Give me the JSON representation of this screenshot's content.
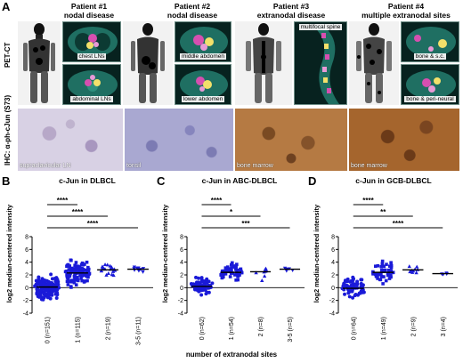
{
  "figure": {
    "panel_a": {
      "letter": "A",
      "row_label_pet": "PET-CT",
      "row_label_ihc": "IHC: α-ph-cJun (S73)",
      "patients": [
        {
          "title_line1": "Patient #1",
          "title_line2": "nodal disease",
          "ct_labels": [
            "chest LNs",
            "abdominal LNs"
          ],
          "ihc_label": "supraclavicular LN"
        },
        {
          "title_line1": "Patient #2",
          "title_line2": "nodal disease",
          "ct_labels": [
            "middle abdomen",
            "lower abdomen"
          ],
          "ihc_label": "tonsil"
        },
        {
          "title_line1": "Patient #3",
          "title_line2": "extranodal disease",
          "ct_labels": [
            "multifocal spine"
          ],
          "ihc_label": "bone marrow"
        },
        {
          "title_line1": "Patient #4",
          "title_line2": "multiple extranodal sites",
          "ct_labels": [
            "bone & s.c.",
            "bone & peri-neural"
          ],
          "ihc_label": "bone marrow"
        }
      ]
    },
    "x_caption": "number of extranodal sites",
    "y_label": "log2 median-centered intensity",
    "colors": {
      "marker": "#1a1ad8",
      "ihc_low": "#c9c4dc",
      "ihc_high": "#a5652d",
      "ct_bg": "#07221f"
    }
  },
  "chart_data": [
    {
      "type": "scatter",
      "panel": "B",
      "title": "c-Jun in DLBCL",
      "ylabel": "log2 median-centered intensity",
      "categories": [
        "0 (n=151)",
        "1 (n=115)",
        "2 (n=19)",
        "3-5 (n=11)"
      ],
      "markers": [
        "circle",
        "square",
        "triangle",
        "triangle-down"
      ],
      "n": [
        151,
        115,
        19,
        11
      ],
      "medians": [
        0.1,
        2.3,
        2.8,
        2.9
      ],
      "ranges": [
        [
          -3.5,
          3.5
        ],
        [
          -2.8,
          4.5
        ],
        [
          -2.5,
          4.0
        ],
        [
          1.9,
          4.0
        ]
      ],
      "yticks": [
        -4,
        -2,
        0,
        2,
        4,
        6,
        8
      ],
      "ylim": [
        -4,
        8
      ],
      "significance": [
        {
          "from": 0,
          "to": 1,
          "label": "****"
        },
        {
          "from": 0,
          "to": 2,
          "label": "****"
        },
        {
          "from": 0,
          "to": 3,
          "label": "****"
        }
      ]
    },
    {
      "type": "scatter",
      "panel": "C",
      "title": "c-Jun in ABC-DLBCL",
      "ylabel": "log2 median-centered intensity",
      "categories": [
        "0 (n=62)",
        "1 (n=54)",
        "2 (n=8)",
        "3-5 (n=5)"
      ],
      "markers": [
        "circle",
        "square",
        "triangle",
        "triangle-down"
      ],
      "n": [
        62,
        54,
        8,
        5
      ],
      "medians": [
        0.2,
        2.4,
        2.5,
        2.9
      ],
      "ranges": [
        [
          -2.5,
          2.8
        ],
        [
          -1.0,
          4.5
        ],
        [
          -2.0,
          3.3
        ],
        [
          2.2,
          3.6
        ]
      ],
      "yticks": [
        -4,
        -2,
        0,
        2,
        4,
        6,
        8
      ],
      "ylim": [
        -4,
        8
      ],
      "significance": [
        {
          "from": 0,
          "to": 1,
          "label": "****"
        },
        {
          "from": 0,
          "to": 2,
          "label": "*"
        },
        {
          "from": 0,
          "to": 3,
          "label": "***"
        }
      ]
    },
    {
      "type": "scatter",
      "panel": "D",
      "title": "c-Jun in GCB-DLBCL",
      "ylabel": "log2 median-centered intensity",
      "categories": [
        "0 (n=64)",
        "1 (n=49)",
        "2 (n=9)",
        "3 (n=4)"
      ],
      "markers": [
        "circle",
        "square",
        "triangle",
        "triangle-down"
      ],
      "n": [
        64,
        49,
        9,
        4
      ],
      "medians": [
        -0.1,
        2.4,
        2.8,
        2.2
      ],
      "ranges": [
        [
          -3.5,
          3.5
        ],
        [
          -2.5,
          4.5
        ],
        [
          -1.0,
          4.0
        ],
        [
          2.0,
          2.6
        ]
      ],
      "yticks": [
        -4,
        -2,
        0,
        2,
        4,
        6,
        8
      ],
      "ylim": [
        -4,
        8
      ],
      "significance": [
        {
          "from": 0,
          "to": 1,
          "label": "****"
        },
        {
          "from": 0,
          "to": 2,
          "label": "**"
        },
        {
          "from": 0,
          "to": 3,
          "label": "****"
        }
      ]
    }
  ]
}
